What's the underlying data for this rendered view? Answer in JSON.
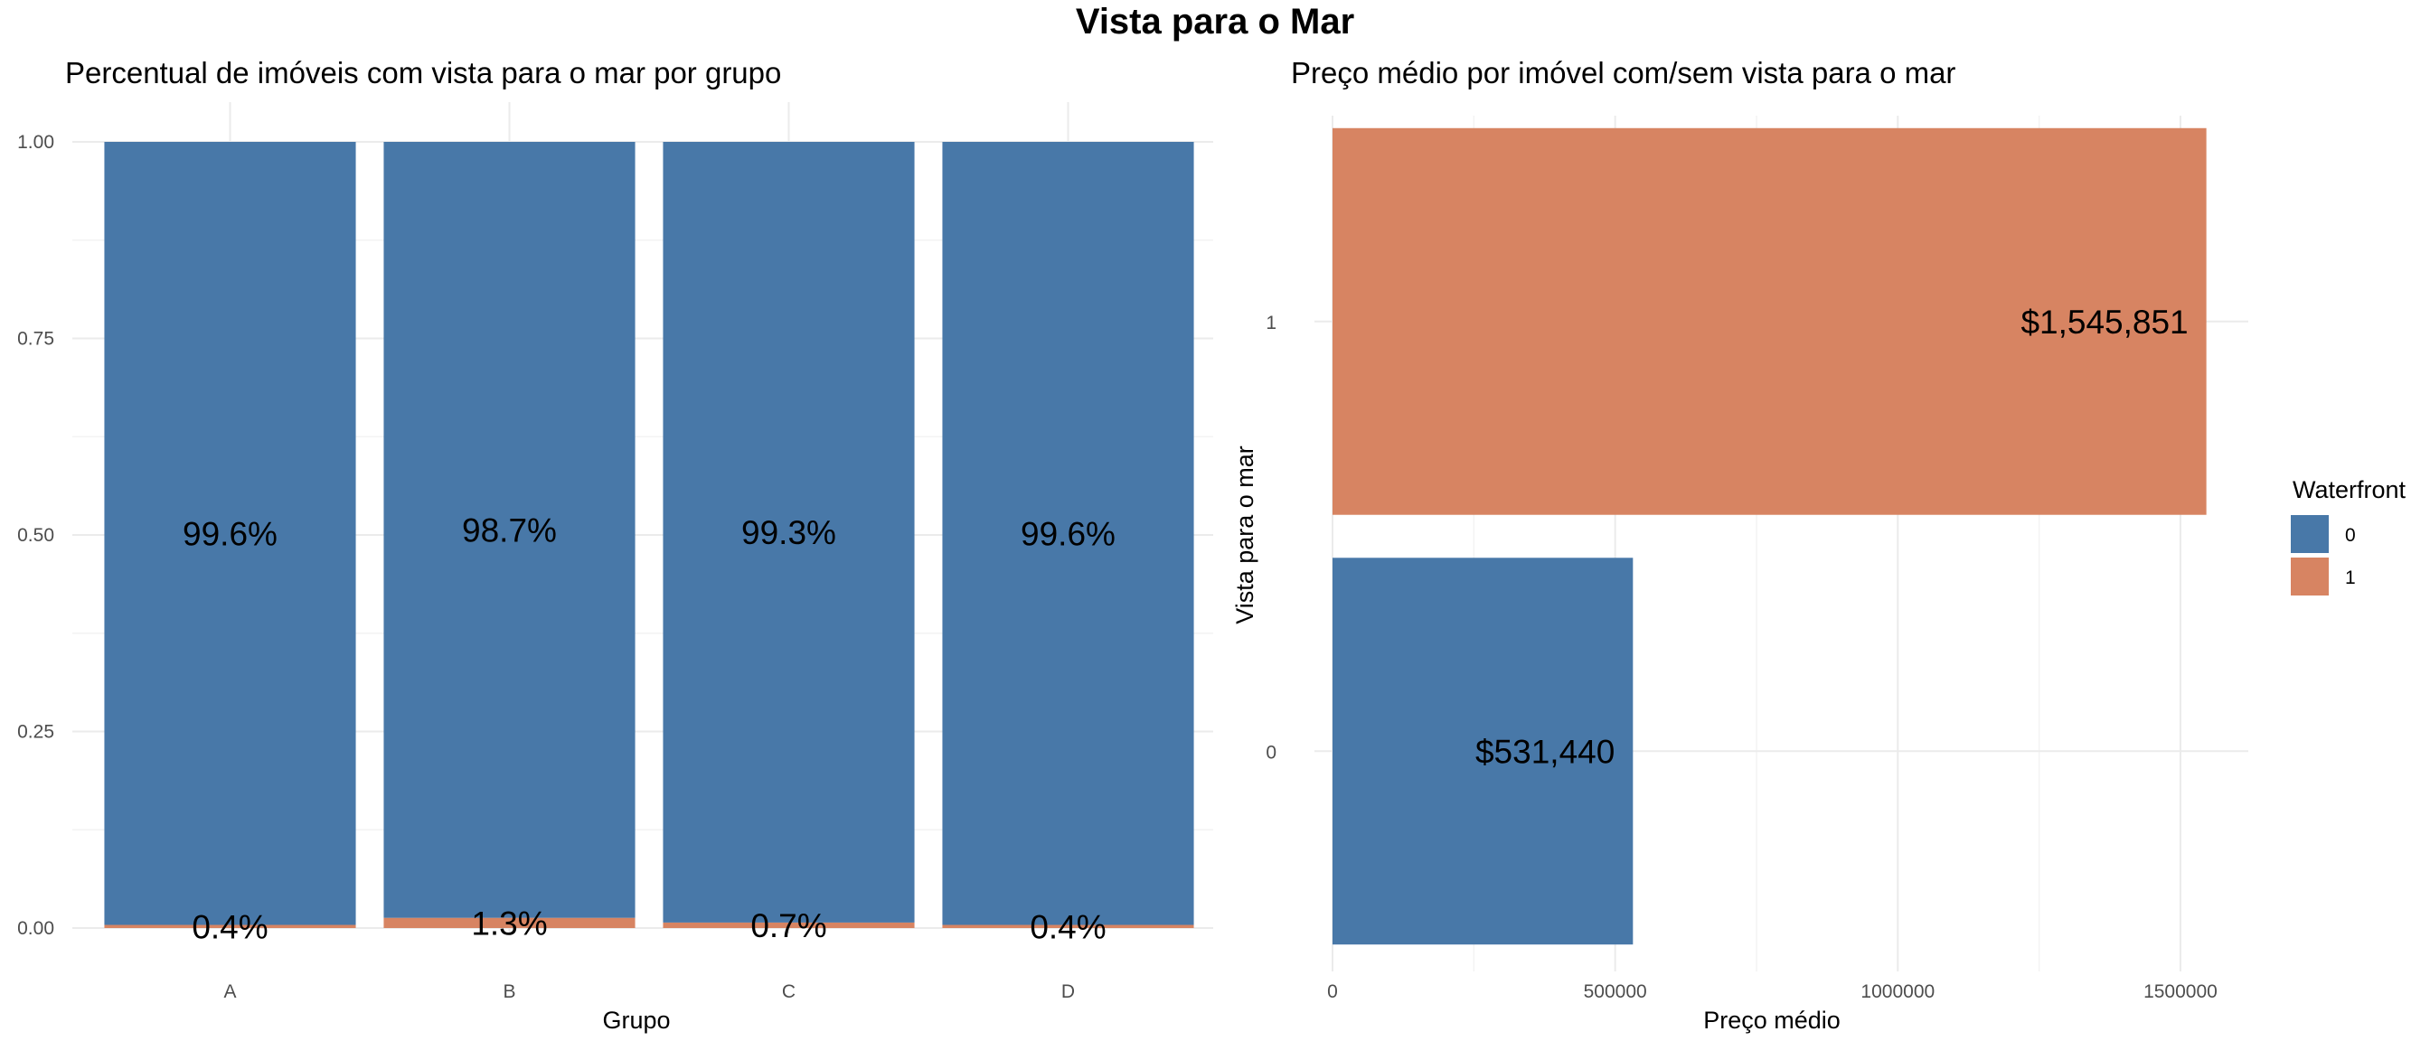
{
  "title": "Vista para o Mar",
  "colors": {
    "0": "#4878a8",
    "1": "#d78462"
  },
  "legend": {
    "title": "Waterfront",
    "items": [
      "0",
      "1"
    ],
    "placement": "right"
  },
  "chart_data": [
    {
      "type": "bar",
      "stacked": true,
      "title": "Percentual de imóveis com vista para o mar por grupo",
      "xlabel": "Grupo",
      "ylabel": "",
      "categories": [
        "A",
        "B",
        "C",
        "D"
      ],
      "ylim": [
        0,
        1
      ],
      "yticks": [
        "0.00",
        "0.25",
        "0.50",
        "0.75",
        "1.00"
      ],
      "grid": true,
      "series": [
        {
          "name": "0",
          "values": [
            0.996,
            0.987,
            0.993,
            0.996
          ],
          "labels": [
            "99.6%",
            "98.7%",
            "99.3%",
            "99.6%"
          ]
        },
        {
          "name": "1",
          "values": [
            0.004,
            0.013,
            0.007,
            0.004
          ],
          "labels": [
            "0.4%",
            "1.3%",
            "0.7%",
            "0.4%"
          ]
        }
      ]
    },
    {
      "type": "bar",
      "orientation": "horizontal",
      "title": "Preço médio por imóvel com/sem vista para o mar",
      "xlabel": "Preço médio",
      "ylabel": "Vista para o mar",
      "categories": [
        "0",
        "1"
      ],
      "values": [
        531440,
        1545851
      ],
      "labels": [
        "$531,440",
        "$1,545,851"
      ],
      "xlim": [
        0,
        1620000
      ],
      "xticks": [
        0,
        500000,
        1000000,
        1500000
      ],
      "grid": true
    }
  ]
}
